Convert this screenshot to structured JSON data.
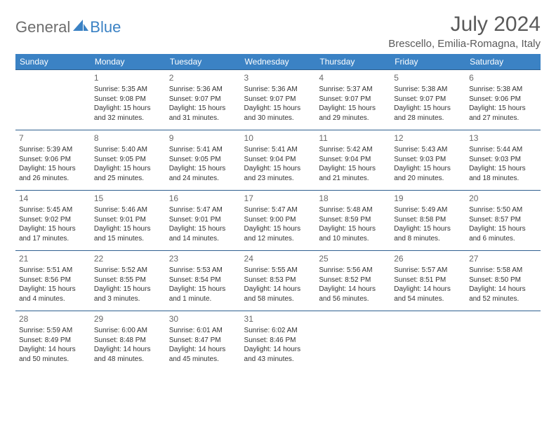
{
  "brand": {
    "part1": "General",
    "part2": "Blue"
  },
  "title": "July 2024",
  "location": "Brescello, Emilia-Romagna, Italy",
  "colors": {
    "header_bg": "#3b82c4",
    "header_text": "#ffffff",
    "border": "#2f5f8f",
    "body_text": "#333333",
    "title_text": "#5a5a5a",
    "logo_gray": "#6d6d6d",
    "logo_blue": "#3b82c4"
  },
  "weekdays": [
    "Sunday",
    "Monday",
    "Tuesday",
    "Wednesday",
    "Thursday",
    "Friday",
    "Saturday"
  ],
  "weeks": [
    [
      null,
      {
        "n": "1",
        "sr": "Sunrise: 5:35 AM",
        "ss": "Sunset: 9:08 PM",
        "d1": "Daylight: 15 hours",
        "d2": "and 32 minutes."
      },
      {
        "n": "2",
        "sr": "Sunrise: 5:36 AM",
        "ss": "Sunset: 9:07 PM",
        "d1": "Daylight: 15 hours",
        "d2": "and 31 minutes."
      },
      {
        "n": "3",
        "sr": "Sunrise: 5:36 AM",
        "ss": "Sunset: 9:07 PM",
        "d1": "Daylight: 15 hours",
        "d2": "and 30 minutes."
      },
      {
        "n": "4",
        "sr": "Sunrise: 5:37 AM",
        "ss": "Sunset: 9:07 PM",
        "d1": "Daylight: 15 hours",
        "d2": "and 29 minutes."
      },
      {
        "n": "5",
        "sr": "Sunrise: 5:38 AM",
        "ss": "Sunset: 9:07 PM",
        "d1": "Daylight: 15 hours",
        "d2": "and 28 minutes."
      },
      {
        "n": "6",
        "sr": "Sunrise: 5:38 AM",
        "ss": "Sunset: 9:06 PM",
        "d1": "Daylight: 15 hours",
        "d2": "and 27 minutes."
      }
    ],
    [
      {
        "n": "7",
        "sr": "Sunrise: 5:39 AM",
        "ss": "Sunset: 9:06 PM",
        "d1": "Daylight: 15 hours",
        "d2": "and 26 minutes."
      },
      {
        "n": "8",
        "sr": "Sunrise: 5:40 AM",
        "ss": "Sunset: 9:05 PM",
        "d1": "Daylight: 15 hours",
        "d2": "and 25 minutes."
      },
      {
        "n": "9",
        "sr": "Sunrise: 5:41 AM",
        "ss": "Sunset: 9:05 PM",
        "d1": "Daylight: 15 hours",
        "d2": "and 24 minutes."
      },
      {
        "n": "10",
        "sr": "Sunrise: 5:41 AM",
        "ss": "Sunset: 9:04 PM",
        "d1": "Daylight: 15 hours",
        "d2": "and 23 minutes."
      },
      {
        "n": "11",
        "sr": "Sunrise: 5:42 AM",
        "ss": "Sunset: 9:04 PM",
        "d1": "Daylight: 15 hours",
        "d2": "and 21 minutes."
      },
      {
        "n": "12",
        "sr": "Sunrise: 5:43 AM",
        "ss": "Sunset: 9:03 PM",
        "d1": "Daylight: 15 hours",
        "d2": "and 20 minutes."
      },
      {
        "n": "13",
        "sr": "Sunrise: 5:44 AM",
        "ss": "Sunset: 9:03 PM",
        "d1": "Daylight: 15 hours",
        "d2": "and 18 minutes."
      }
    ],
    [
      {
        "n": "14",
        "sr": "Sunrise: 5:45 AM",
        "ss": "Sunset: 9:02 PM",
        "d1": "Daylight: 15 hours",
        "d2": "and 17 minutes."
      },
      {
        "n": "15",
        "sr": "Sunrise: 5:46 AM",
        "ss": "Sunset: 9:01 PM",
        "d1": "Daylight: 15 hours",
        "d2": "and 15 minutes."
      },
      {
        "n": "16",
        "sr": "Sunrise: 5:47 AM",
        "ss": "Sunset: 9:01 PM",
        "d1": "Daylight: 15 hours",
        "d2": "and 14 minutes."
      },
      {
        "n": "17",
        "sr": "Sunrise: 5:47 AM",
        "ss": "Sunset: 9:00 PM",
        "d1": "Daylight: 15 hours",
        "d2": "and 12 minutes."
      },
      {
        "n": "18",
        "sr": "Sunrise: 5:48 AM",
        "ss": "Sunset: 8:59 PM",
        "d1": "Daylight: 15 hours",
        "d2": "and 10 minutes."
      },
      {
        "n": "19",
        "sr": "Sunrise: 5:49 AM",
        "ss": "Sunset: 8:58 PM",
        "d1": "Daylight: 15 hours",
        "d2": "and 8 minutes."
      },
      {
        "n": "20",
        "sr": "Sunrise: 5:50 AM",
        "ss": "Sunset: 8:57 PM",
        "d1": "Daylight: 15 hours",
        "d2": "and 6 minutes."
      }
    ],
    [
      {
        "n": "21",
        "sr": "Sunrise: 5:51 AM",
        "ss": "Sunset: 8:56 PM",
        "d1": "Daylight: 15 hours",
        "d2": "and 4 minutes."
      },
      {
        "n": "22",
        "sr": "Sunrise: 5:52 AM",
        "ss": "Sunset: 8:55 PM",
        "d1": "Daylight: 15 hours",
        "d2": "and 3 minutes."
      },
      {
        "n": "23",
        "sr": "Sunrise: 5:53 AM",
        "ss": "Sunset: 8:54 PM",
        "d1": "Daylight: 15 hours",
        "d2": "and 1 minute."
      },
      {
        "n": "24",
        "sr": "Sunrise: 5:55 AM",
        "ss": "Sunset: 8:53 PM",
        "d1": "Daylight: 14 hours",
        "d2": "and 58 minutes."
      },
      {
        "n": "25",
        "sr": "Sunrise: 5:56 AM",
        "ss": "Sunset: 8:52 PM",
        "d1": "Daylight: 14 hours",
        "d2": "and 56 minutes."
      },
      {
        "n": "26",
        "sr": "Sunrise: 5:57 AM",
        "ss": "Sunset: 8:51 PM",
        "d1": "Daylight: 14 hours",
        "d2": "and 54 minutes."
      },
      {
        "n": "27",
        "sr": "Sunrise: 5:58 AM",
        "ss": "Sunset: 8:50 PM",
        "d1": "Daylight: 14 hours",
        "d2": "and 52 minutes."
      }
    ],
    [
      {
        "n": "28",
        "sr": "Sunrise: 5:59 AM",
        "ss": "Sunset: 8:49 PM",
        "d1": "Daylight: 14 hours",
        "d2": "and 50 minutes."
      },
      {
        "n": "29",
        "sr": "Sunrise: 6:00 AM",
        "ss": "Sunset: 8:48 PM",
        "d1": "Daylight: 14 hours",
        "d2": "and 48 minutes."
      },
      {
        "n": "30",
        "sr": "Sunrise: 6:01 AM",
        "ss": "Sunset: 8:47 PM",
        "d1": "Daylight: 14 hours",
        "d2": "and 45 minutes."
      },
      {
        "n": "31",
        "sr": "Sunrise: 6:02 AM",
        "ss": "Sunset: 8:46 PM",
        "d1": "Daylight: 14 hours",
        "d2": "and 43 minutes."
      },
      null,
      null,
      null
    ]
  ]
}
